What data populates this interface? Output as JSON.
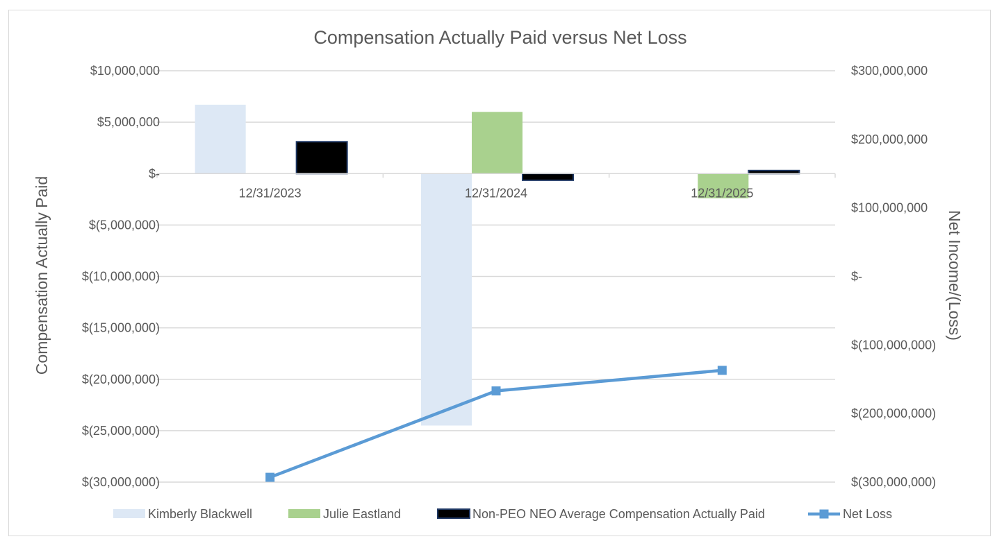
{
  "chart_data": {
    "type": "bar",
    "title": "Compensation Actually Paid versus Net Loss",
    "categories": [
      "12/31/2023",
      "12/31/2024",
      "12/31/2025"
    ],
    "ylabel": "Compensation Actually Paid",
    "y2label": "Net Income/(Loss)",
    "ylim": [
      -30000000,
      10000000
    ],
    "y2lim": [
      -300000000,
      300000000
    ],
    "yticks": [
      {
        "value": 10000000,
        "label": "$10,000,000"
      },
      {
        "value": 5000000,
        "label": "$5,000,000"
      },
      {
        "value": 0,
        "label": "$-"
      },
      {
        "value": -5000000,
        "label": "$(5,000,000)"
      },
      {
        "value": -10000000,
        "label": "$(10,000,000)"
      },
      {
        "value": -15000000,
        "label": "$(15,000,000)"
      },
      {
        "value": -20000000,
        "label": "$(20,000,000)"
      },
      {
        "value": -25000000,
        "label": "$(25,000,000)"
      },
      {
        "value": -30000000,
        "label": "$(30,000,000)"
      }
    ],
    "y2ticks": [
      {
        "value": 300000000,
        "label": "$300,000,000"
      },
      {
        "value": 200000000,
        "label": "$200,000,000"
      },
      {
        "value": 100000000,
        "label": "$100,000,000"
      },
      {
        "value": 0,
        "label": "$-"
      },
      {
        "value": -100000000,
        "label": "$(100,000,000)"
      },
      {
        "value": -200000000,
        "label": "$(200,000,000)"
      },
      {
        "value": -300000000,
        "label": "$(300,000,000)"
      }
    ],
    "series": [
      {
        "name": "Kimberly Blackwell",
        "kind": "bar",
        "axis": "left",
        "color": "#dde8f5",
        "stroke": "#dde8f5",
        "values": [
          6700000,
          -24500000,
          null
        ]
      },
      {
        "name": "Julie Eastland",
        "kind": "bar",
        "axis": "left",
        "color": "#a9d18e",
        "stroke": "#a9d18e",
        "values": [
          null,
          6000000,
          -2400000
        ]
      },
      {
        "name": "Non-PEO NEO Average Compensation Actually Paid",
        "kind": "bar",
        "axis": "left",
        "color": "#000000",
        "stroke": "#1f3864",
        "values": [
          3100000,
          -650000,
          300000
        ]
      },
      {
        "name": "Net Loss",
        "kind": "line",
        "axis": "right",
        "color": "#5b9bd5",
        "marker": "square",
        "values": [
          -293000000,
          -167000000,
          -137000000
        ]
      }
    ],
    "grid": true,
    "legend": "bottom"
  }
}
